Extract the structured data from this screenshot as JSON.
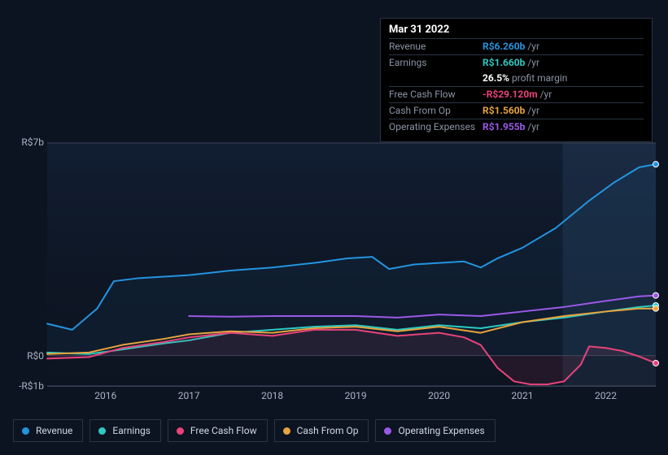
{
  "tooltip": {
    "date": "Mar 31 2022",
    "rows": [
      {
        "label": "Revenue",
        "value": "R$6.260b",
        "suffix": "/yr",
        "cls": "revenue"
      },
      {
        "label": "Earnings",
        "value": "R$1.660b",
        "suffix": "/yr",
        "cls": "earnings"
      },
      {
        "label": "",
        "value": "26.5%",
        "suffix": "profit margin",
        "cls": "margin",
        "noBorder": true
      },
      {
        "label": "Free Cash Flow",
        "value": "-R$29.120m",
        "suffix": "/yr",
        "cls": "fcf"
      },
      {
        "label": "Cash From Op",
        "value": "R$1.560b",
        "suffix": "/yr",
        "cls": "cashop"
      },
      {
        "label": "Operating Expenses",
        "value": "R$1.955b",
        "suffix": "/yr",
        "cls": "opex"
      }
    ]
  },
  "chart": {
    "type": "line",
    "background_color": "#0d1421",
    "plot_bg_gradient": [
      "rgba(30,60,100,0.25)",
      "rgba(10,20,35,0.05)"
    ],
    "highlight_band": {
      "x_from": 0.847,
      "x_to": 1.0,
      "color": "rgba(80,120,170,0.15)"
    },
    "x_years": [
      2016,
      2017,
      2018,
      2019,
      2020,
      2021,
      2022
    ],
    "x_range": [
      2015.3,
      2022.6
    ],
    "y_ticks": [
      {
        "v": 7,
        "label": "R$7b"
      },
      {
        "v": 0,
        "label": "R$0"
      },
      {
        "v": -1,
        "label": "-R$1b"
      }
    ],
    "y_range": [
      -1,
      7
    ],
    "grid_color": "#3a4458",
    "line_width": 2,
    "end_markers": true,
    "marker_radius": 3.5,
    "series": [
      {
        "name": "Revenue",
        "color": "#2394df",
        "fill": "rgba(35,148,223,0.06)",
        "pts": [
          [
            2015.3,
            1.05
          ],
          [
            2015.6,
            0.85
          ],
          [
            2015.9,
            1.55
          ],
          [
            2016.1,
            2.45
          ],
          [
            2016.4,
            2.55
          ],
          [
            2017.0,
            2.65
          ],
          [
            2017.5,
            2.8
          ],
          [
            2018.0,
            2.9
          ],
          [
            2018.5,
            3.05
          ],
          [
            2018.9,
            3.2
          ],
          [
            2019.2,
            3.25
          ],
          [
            2019.4,
            2.85
          ],
          [
            2019.7,
            3.0
          ],
          [
            2020.0,
            3.05
          ],
          [
            2020.3,
            3.1
          ],
          [
            2020.5,
            2.9
          ],
          [
            2020.7,
            3.2
          ],
          [
            2021.0,
            3.55
          ],
          [
            2021.4,
            4.2
          ],
          [
            2021.8,
            5.1
          ],
          [
            2022.1,
            5.7
          ],
          [
            2022.4,
            6.2
          ],
          [
            2022.6,
            6.3
          ]
        ]
      },
      {
        "name": "Operating Expenses",
        "color": "#9b59e8",
        "pts": [
          [
            2017.0,
            1.3
          ],
          [
            2017.5,
            1.28
          ],
          [
            2018.0,
            1.3
          ],
          [
            2018.5,
            1.3
          ],
          [
            2019.0,
            1.3
          ],
          [
            2019.5,
            1.25
          ],
          [
            2020.0,
            1.35
          ],
          [
            2020.5,
            1.3
          ],
          [
            2021.0,
            1.45
          ],
          [
            2021.5,
            1.6
          ],
          [
            2022.0,
            1.8
          ],
          [
            2022.4,
            1.95
          ],
          [
            2022.6,
            1.98
          ]
        ]
      },
      {
        "name": "Earnings",
        "color": "#2dc9c2",
        "pts": [
          [
            2015.3,
            0.1
          ],
          [
            2015.8,
            0.05
          ],
          [
            2016.2,
            0.2
          ],
          [
            2016.7,
            0.4
          ],
          [
            2017.0,
            0.5
          ],
          [
            2017.5,
            0.75
          ],
          [
            2018.0,
            0.85
          ],
          [
            2018.5,
            0.95
          ],
          [
            2019.0,
            1.0
          ],
          [
            2019.5,
            0.85
          ],
          [
            2020.0,
            1.0
          ],
          [
            2020.5,
            0.9
          ],
          [
            2021.0,
            1.1
          ],
          [
            2021.5,
            1.25
          ],
          [
            2022.0,
            1.45
          ],
          [
            2022.4,
            1.6
          ],
          [
            2022.6,
            1.65
          ]
        ]
      },
      {
        "name": "Cash From Op",
        "color": "#e8a33d",
        "pts": [
          [
            2015.3,
            0.05
          ],
          [
            2015.8,
            0.1
          ],
          [
            2016.2,
            0.35
          ],
          [
            2016.7,
            0.55
          ],
          [
            2017.0,
            0.7
          ],
          [
            2017.5,
            0.8
          ],
          [
            2018.0,
            0.75
          ],
          [
            2018.5,
            0.9
          ],
          [
            2019.0,
            0.95
          ],
          [
            2019.5,
            0.8
          ],
          [
            2020.0,
            0.95
          ],
          [
            2020.5,
            0.75
          ],
          [
            2021.0,
            1.1
          ],
          [
            2021.5,
            1.3
          ],
          [
            2022.0,
            1.45
          ],
          [
            2022.4,
            1.55
          ],
          [
            2022.6,
            1.55
          ]
        ]
      },
      {
        "name": "Free Cash Flow",
        "color": "#e8437a",
        "fill": "rgba(232,67,122,0.10)",
        "pts": [
          [
            2015.3,
            -0.1
          ],
          [
            2015.8,
            -0.05
          ],
          [
            2016.2,
            0.25
          ],
          [
            2016.7,
            0.45
          ],
          [
            2017.0,
            0.6
          ],
          [
            2017.5,
            0.75
          ],
          [
            2018.0,
            0.65
          ],
          [
            2018.5,
            0.85
          ],
          [
            2019.0,
            0.85
          ],
          [
            2019.5,
            0.65
          ],
          [
            2020.0,
            0.75
          ],
          [
            2020.3,
            0.6
          ],
          [
            2020.5,
            0.35
          ],
          [
            2020.7,
            -0.4
          ],
          [
            2020.9,
            -0.85
          ],
          [
            2021.1,
            -0.95
          ],
          [
            2021.3,
            -0.95
          ],
          [
            2021.5,
            -0.85
          ],
          [
            2021.7,
            -0.3
          ],
          [
            2021.8,
            0.3
          ],
          [
            2022.0,
            0.25
          ],
          [
            2022.2,
            0.15
          ],
          [
            2022.4,
            -0.03
          ],
          [
            2022.6,
            -0.25
          ]
        ]
      }
    ]
  },
  "legend": [
    {
      "label": "Revenue",
      "cls": "revenue"
    },
    {
      "label": "Earnings",
      "cls": "earnings"
    },
    {
      "label": "Free Cash Flow",
      "cls": "fcf"
    },
    {
      "label": "Cash From Op",
      "cls": "cashop"
    },
    {
      "label": "Operating Expenses",
      "cls": "opex"
    }
  ]
}
